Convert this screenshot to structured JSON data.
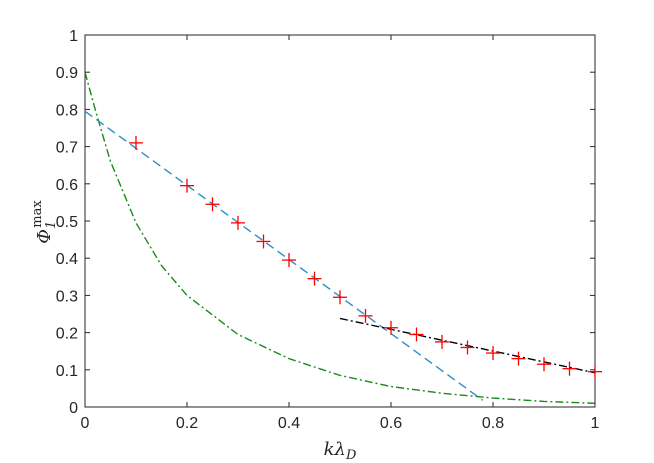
{
  "chart_data": {
    "type": "line",
    "title": "",
    "xlabel": "kλD",
    "ylabel": "Φ1max",
    "xlim": [
      0,
      1
    ],
    "ylim": [
      0,
      1
    ],
    "x_ticks": [
      0,
      0.2,
      0.4,
      0.6,
      0.8,
      1
    ],
    "x_tick_labels": [
      "0",
      "0.2",
      "0.4",
      "0.6",
      "0.8",
      "1"
    ],
    "y_ticks": [
      0,
      0.1,
      0.2,
      0.3,
      0.4,
      0.5,
      0.6,
      0.7,
      0.8,
      0.9,
      1
    ],
    "y_tick_labels": [
      "0",
      "0.1",
      "0.2",
      "0.3",
      "0.4",
      "0.5",
      "0.6",
      "0.7",
      "0.8",
      "0.9",
      "1"
    ],
    "grid": false,
    "series": [
      {
        "style": "markers-plus",
        "color": "#ff0000",
        "x": [
          0.1,
          0.2,
          0.25,
          0.3,
          0.35,
          0.4,
          0.45,
          0.5,
          0.55,
          0.6,
          0.65,
          0.7,
          0.75,
          0.8,
          0.85,
          0.9,
          0.95,
          1.0
        ],
        "y": [
          0.71,
          0.595,
          0.545,
          0.495,
          0.445,
          0.395,
          0.345,
          0.295,
          0.245,
          0.213,
          0.195,
          0.175,
          0.16,
          0.145,
          0.13,
          0.115,
          0.103,
          0.095
        ]
      },
      {
        "style": "dashed",
        "color": "#2b8fc7",
        "x": [
          0,
          0.78
        ],
        "y": [
          0.795,
          0.018
        ]
      },
      {
        "style": "dash-dot",
        "color": "#000000",
        "x": [
          0.5,
          1.0
        ],
        "y": [
          0.238,
          0.092
        ]
      },
      {
        "style": "dash-dot",
        "color": "#1a8a1a",
        "x": [
          0,
          0.02,
          0.05,
          0.1,
          0.15,
          0.2,
          0.3,
          0.4,
          0.5,
          0.6,
          0.7,
          0.8,
          0.9,
          1.0
        ],
        "y": [
          0.9,
          0.8,
          0.66,
          0.495,
          0.38,
          0.3,
          0.195,
          0.13,
          0.085,
          0.055,
          0.037,
          0.024,
          0.015,
          0.01
        ]
      }
    ]
  }
}
